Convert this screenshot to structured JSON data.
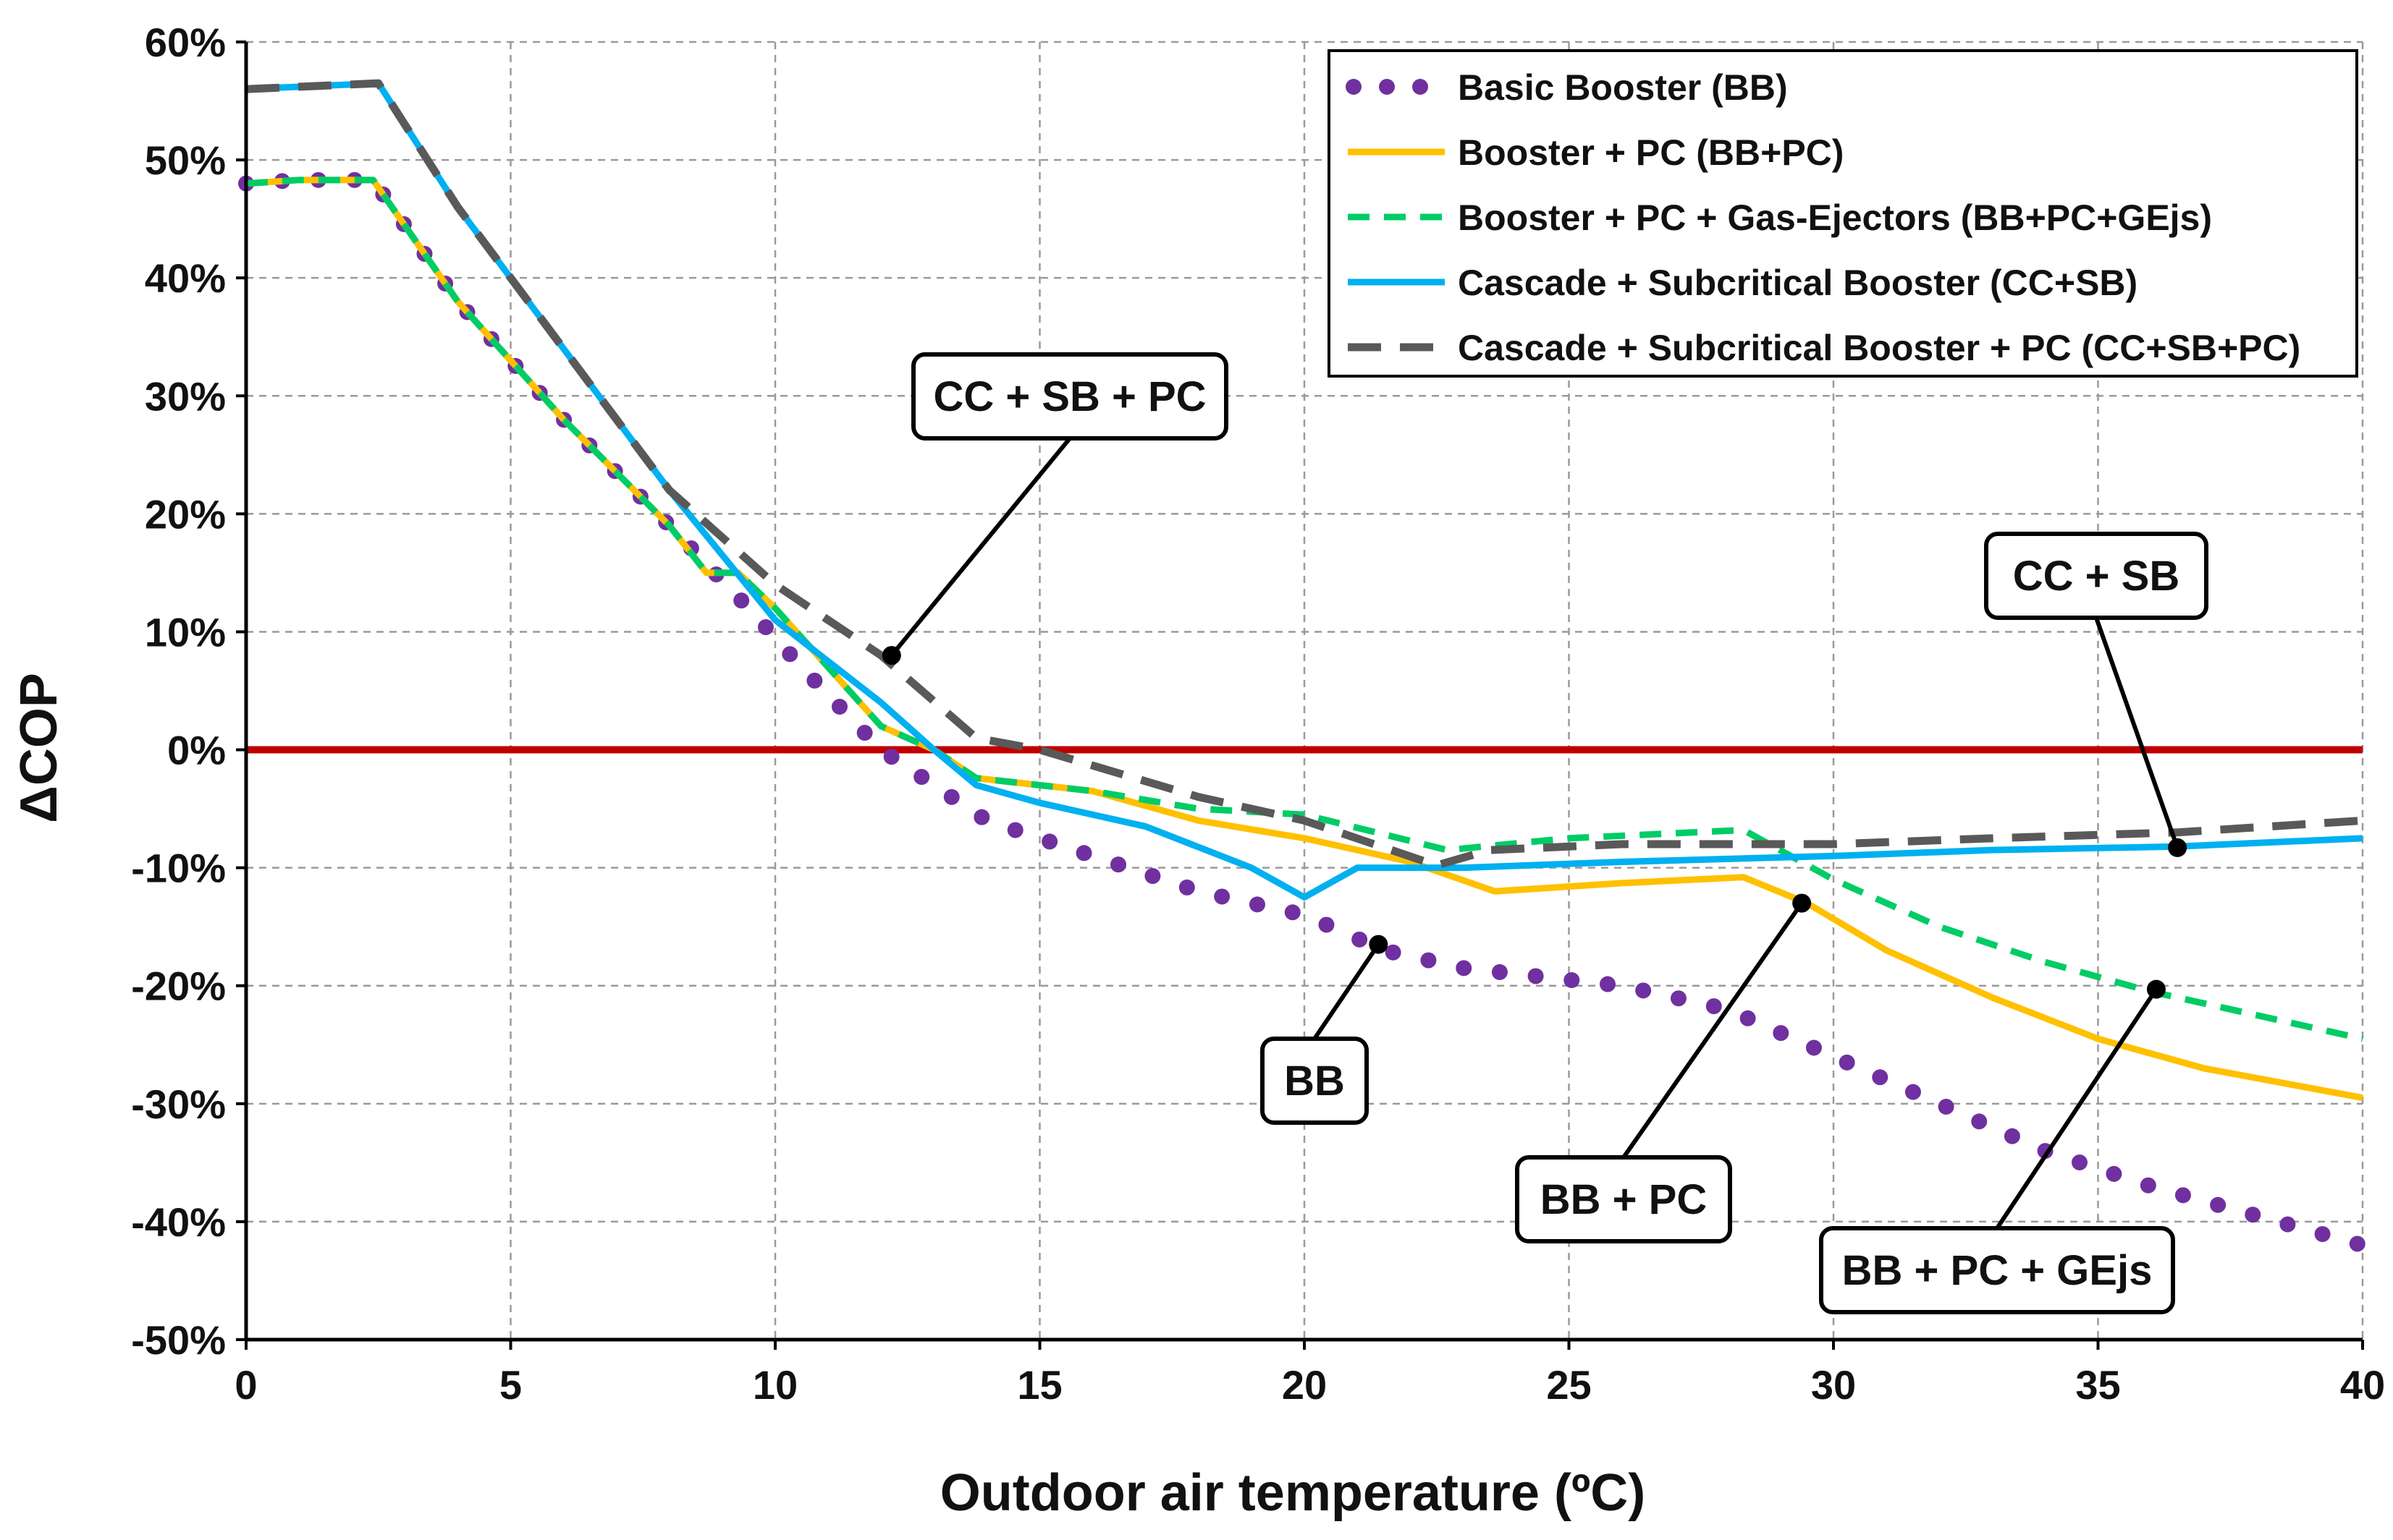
{
  "chart_data": {
    "type": "line",
    "title": "",
    "xlabel": "Outdoor air temperature (ºC)",
    "ylabel": "ΔCOP",
    "xlim": [
      0,
      40
    ],
    "ylim": [
      -50,
      60
    ],
    "x_ticks": [
      0,
      5,
      10,
      15,
      20,
      25,
      30,
      35,
      40
    ],
    "y_ticks": [
      60,
      50,
      40,
      30,
      20,
      10,
      0,
      -10,
      -20,
      -30,
      -40,
      -50
    ],
    "x_tick_labels": [
      "0",
      "5",
      "10",
      "15",
      "20",
      "25",
      "30",
      "35",
      "40"
    ],
    "y_tick_labels": [
      "60%",
      "50%",
      "40%",
      "30%",
      "20%",
      "10%",
      "0%",
      "-10%",
      "-20%",
      "-30%",
      "-40%",
      "-50%"
    ],
    "grid": true,
    "legend_position": "top-right",
    "reference_line": {
      "y": 0,
      "color": "#c00000"
    },
    "series": [
      {
        "name": "Basic Booster (BB)",
        "color": "#7030a0",
        "style": "dotted",
        "x": [
          0,
          1,
          2.4,
          4,
          6,
          8,
          9.5,
          10.5,
          12,
          13,
          14,
          16,
          18,
          20,
          21.5,
          23,
          24,
          26,
          28,
          30,
          32,
          34,
          36,
          38,
          40
        ],
        "y": [
          48,
          48.3,
          48.3,
          38,
          28,
          19,
          12,
          7,
          0,
          -3,
          -6,
          -9,
          -12,
          -14,
          -17,
          -18.5,
          -19,
          -20,
          -22,
          -26,
          -30,
          -34,
          -37,
          -39.5,
          -42
        ]
      },
      {
        "name": "Booster + PC (BB+PC)",
        "color": "#ffc000",
        "style": "solid",
        "x": [
          0,
          1,
          2.4,
          4,
          6,
          8,
          8.7,
          9.3,
          10,
          11,
          12,
          13,
          13.8,
          16,
          18,
          20,
          22,
          23.6,
          26,
          28.3,
          29.5,
          31,
          33,
          35,
          37,
          40
        ],
        "y": [
          48,
          48.3,
          48.3,
          38,
          28,
          19,
          15,
          15,
          12,
          7,
          2,
          0,
          -2.4,
          -3.5,
          -6,
          -7.5,
          -9.5,
          -12,
          -11.3,
          -10.8,
          -13,
          -17,
          -21,
          -24.5,
          -27,
          -29.5
        ]
      },
      {
        "name": "Booster + PC + Gas-Ejectors (BB+PC+GEjs)",
        "color": "#00cc66",
        "style": "dashed",
        "x": [
          0,
          1,
          2.4,
          4,
          6,
          8,
          8.7,
          9.3,
          10,
          11,
          12,
          13,
          13.8,
          16,
          18,
          20,
          22.7,
          25,
          28.3,
          30,
          32,
          34,
          36,
          38,
          40
        ],
        "y": [
          48,
          48.3,
          48.3,
          38,
          28,
          19,
          15,
          15,
          12,
          7,
          2,
          0,
          -2.4,
          -3.5,
          -5,
          -5.5,
          -8.5,
          -7.5,
          -6.8,
          -11,
          -15,
          -18,
          -20.5,
          -22.5,
          -24.5
        ]
      },
      {
        "name": "Cascade + Subcritical Booster (CC+SB)",
        "color": "#00b0f0",
        "style": "solid",
        "x": [
          0,
          2.5,
          4,
          6,
          8,
          10,
          12,
          13,
          13.8,
          15,
          17,
          19,
          20,
          21,
          23,
          26,
          30,
          33,
          36.5,
          40
        ],
        "y": [
          56,
          56.5,
          46,
          34,
          22,
          11,
          4,
          0,
          -3,
          -4.5,
          -6.5,
          -10,
          -12.5,
          -10,
          -10,
          -9.5,
          -9,
          -8.5,
          -8.2,
          -7.5
        ]
      },
      {
        "name": "Cascade + Subcritical Booster + PC (CC+SB+PC)",
        "color": "#595959",
        "style": "dashed",
        "x": [
          0,
          2.5,
          4,
          6,
          8,
          10,
          12,
          13.8,
          15,
          18,
          20,
          22.5,
          23.5,
          26,
          30,
          33,
          36.5,
          40
        ],
        "y": [
          56,
          56.5,
          46,
          34,
          22,
          14,
          8,
          1,
          0,
          -4,
          -6,
          -9.8,
          -8.5,
          -8,
          -8,
          -7.5,
          -7,
          -6
        ]
      }
    ],
    "annotations": [
      {
        "text": "CC + SB + PC",
        "x": 12.2,
        "y": 8
      },
      {
        "text": "CC + SB",
        "x": 36.5,
        "y": -8.3
      },
      {
        "text": "BB",
        "x": 21.4,
        "y": -16.5
      },
      {
        "text": "BB + PC",
        "x": 29.4,
        "y": -13
      },
      {
        "text": "BB + PC + GEjs",
        "x": 36.1,
        "y": -20.3
      }
    ]
  }
}
